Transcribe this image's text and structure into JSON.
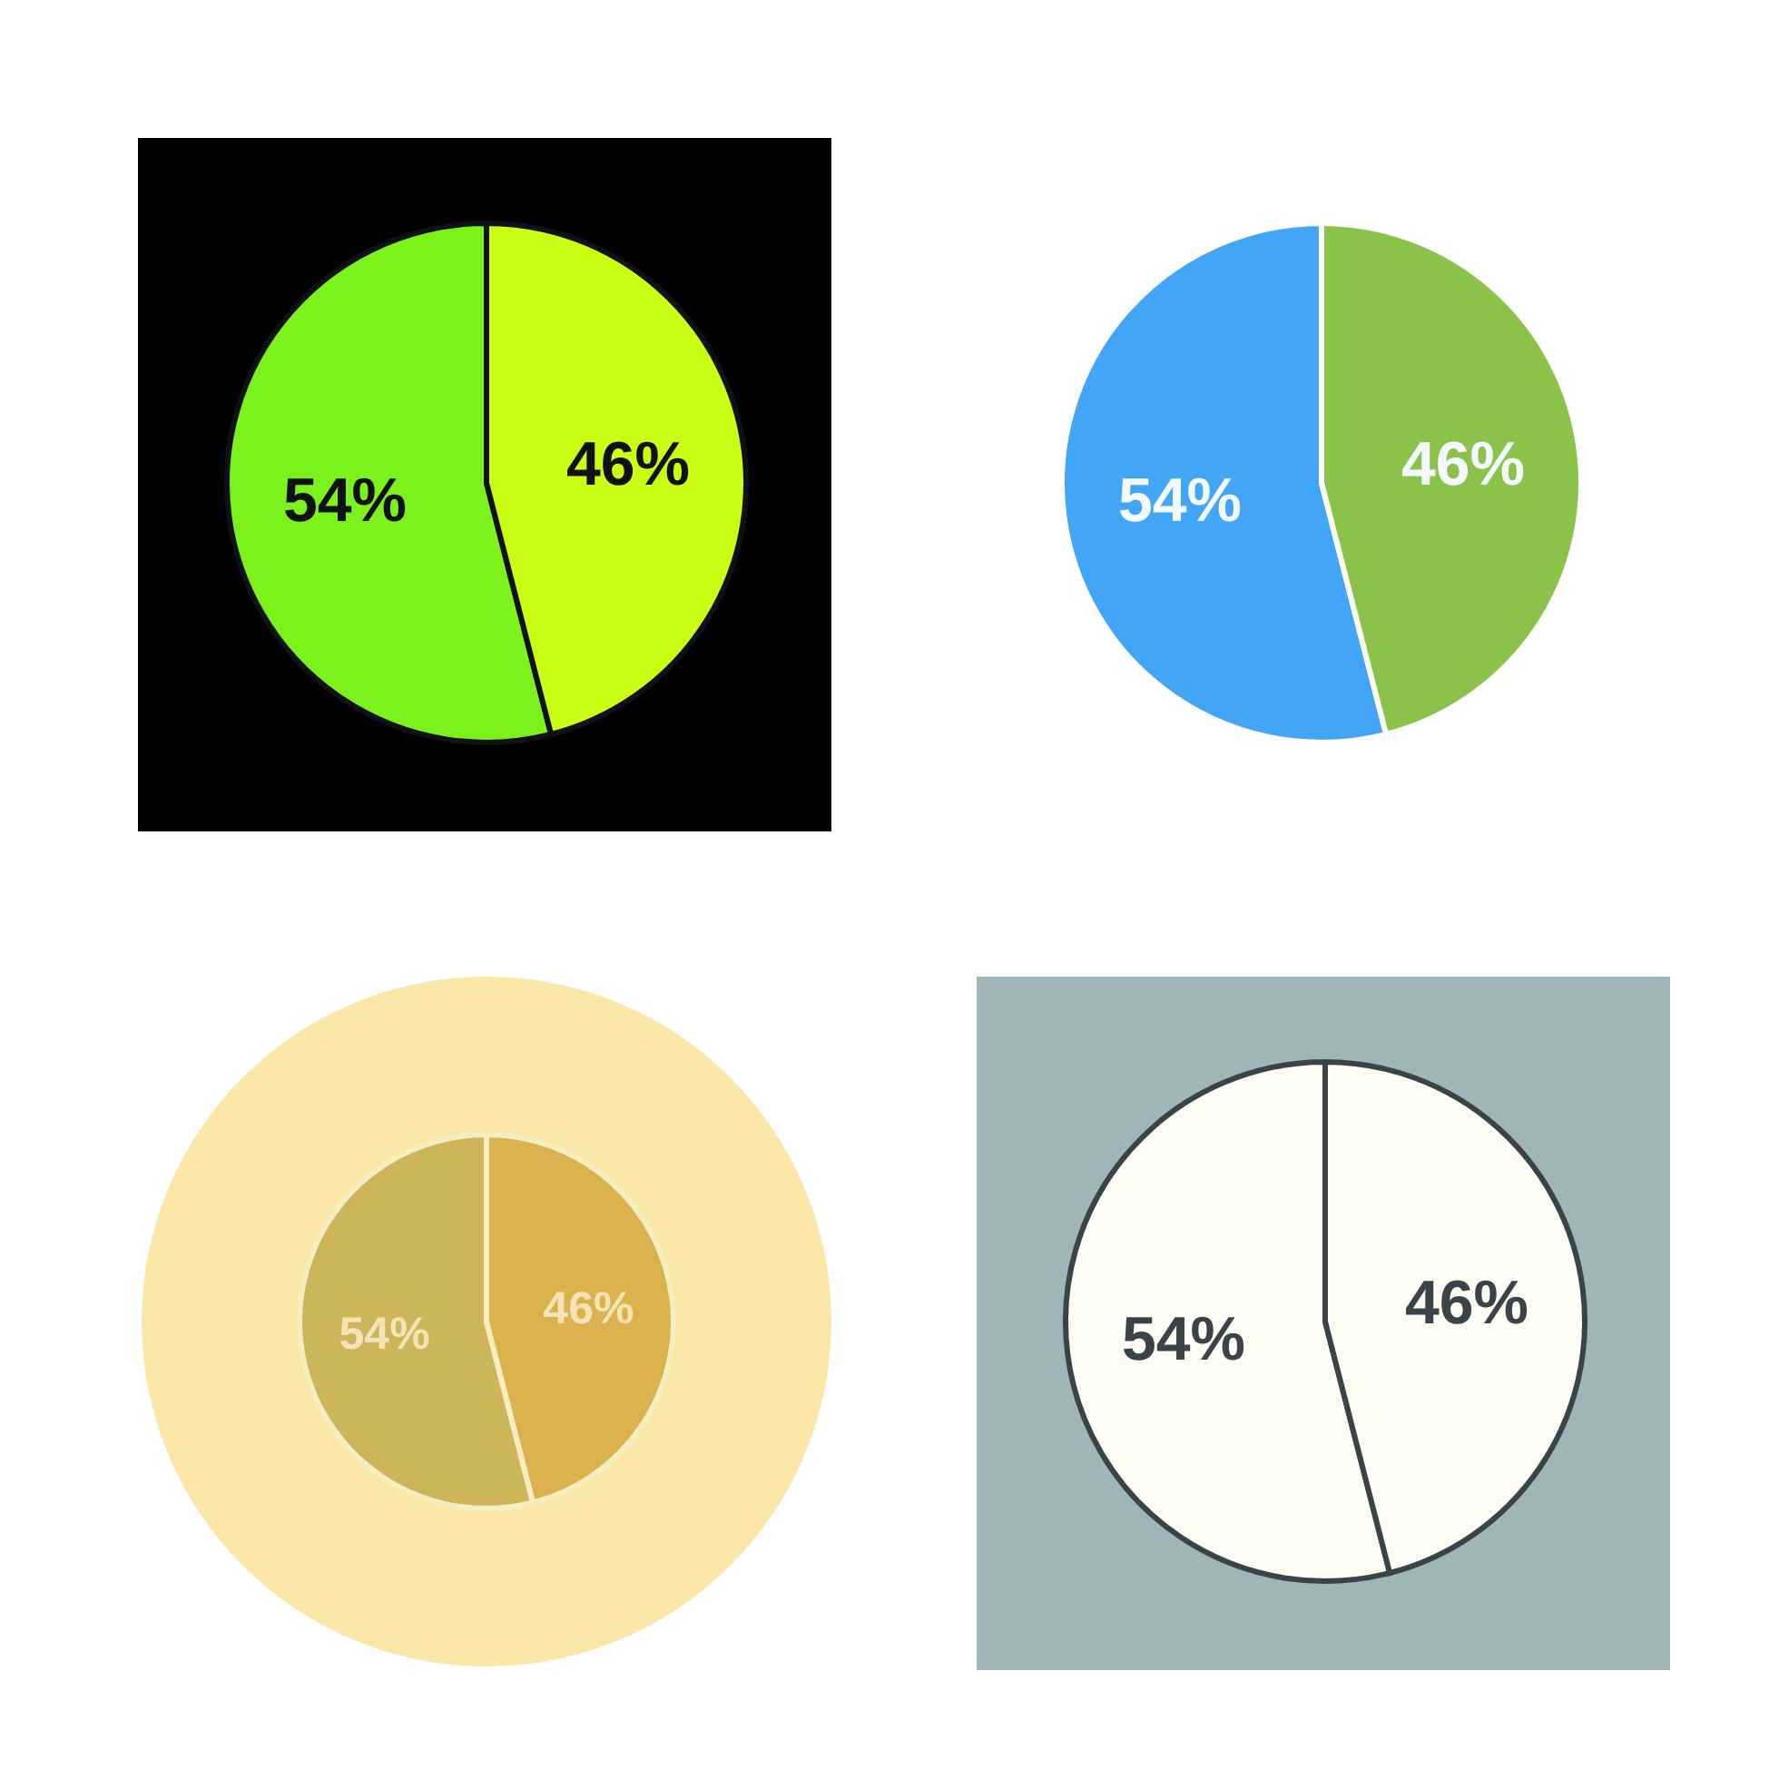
{
  "chart_data": [
    {
      "type": "pie",
      "categories": [
        null,
        null
      ],
      "values": [
        54,
        46
      ],
      "colors": [
        "#7cf21c",
        "#c8ff14"
      ],
      "value_labels": [
        "54%",
        "46%"
      ]
    },
    {
      "type": "pie",
      "categories": [
        null,
        null
      ],
      "values": [
        54,
        46
      ],
      "colors": [
        "#42a5f5",
        "#8bc34a"
      ],
      "value_labels": [
        "54%",
        "46%"
      ]
    },
    {
      "type": "pie",
      "categories": [
        null,
        null
      ],
      "values": [
        54,
        46
      ],
      "colors": [
        "#cdb65a",
        "#dcb24e"
      ],
      "value_labels": [
        "54%",
        "46%"
      ]
    },
    {
      "type": "pie",
      "categories": [
        null,
        null
      ],
      "values": [
        54,
        46
      ],
      "colors": [
        "#fdfdf4",
        "#fdfdf4"
      ],
      "value_labels": [
        "54%",
        "46%"
      ]
    }
  ]
}
